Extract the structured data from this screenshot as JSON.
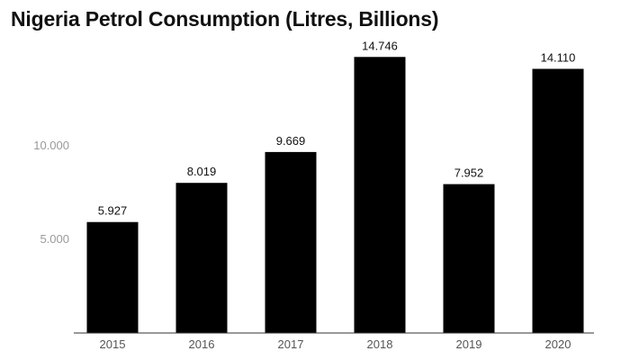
{
  "chart_data": {
    "type": "bar",
    "title": "Nigeria Petrol Consumption (Litres, Billions)",
    "xlabel": "",
    "ylabel": "",
    "categories": [
      "2015",
      "2016",
      "2017",
      "2018",
      "2019",
      "2020"
    ],
    "values": [
      5.927,
      8.019,
      9.669,
      14.746,
      7.952,
      14.11
    ],
    "data_labels": [
      "5.927",
      "8.019",
      "9.669",
      "14.746",
      "7.952",
      "14.110"
    ],
    "yticks": [
      5,
      10
    ],
    "ytick_labels": [
      "5.000",
      "10.000"
    ],
    "ylim": [
      0,
      15
    ],
    "grid": false,
    "bar_color": "#000000"
  }
}
